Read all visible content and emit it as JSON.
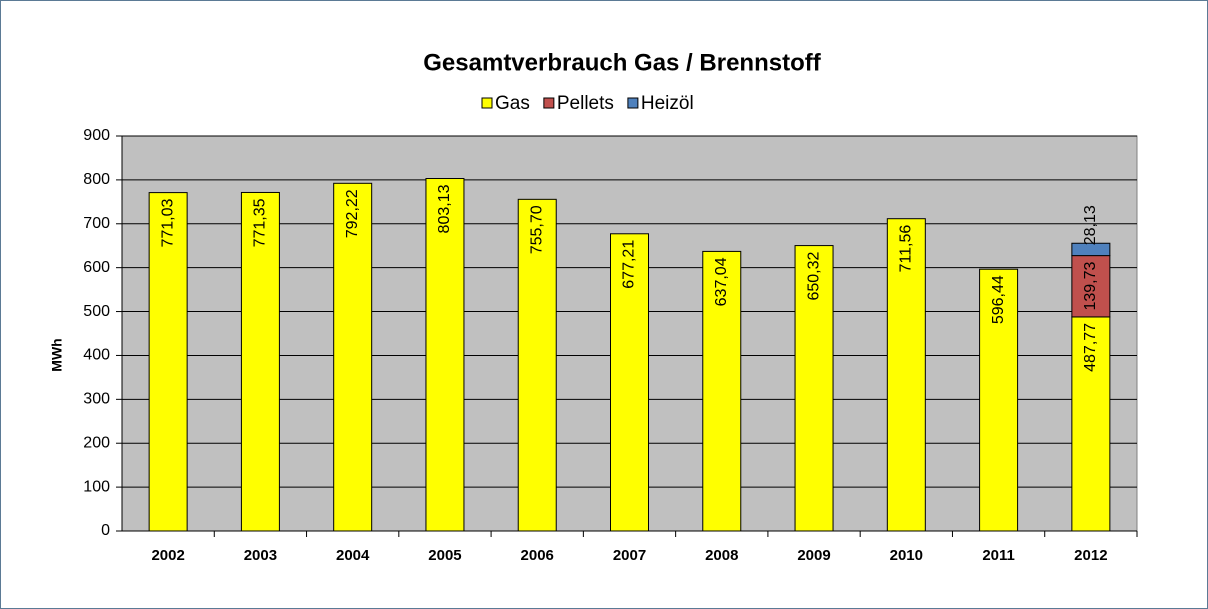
{
  "chart_data": {
    "type": "stacked_bar",
    "title": "Gesamtverbrauch Gas / Brennstoff",
    "y_label": "MWh",
    "categories": [
      "2002",
      "2003",
      "2004",
      "2005",
      "2006",
      "2007",
      "2008",
      "2009",
      "2010",
      "2011",
      "2012"
    ],
    "series": [
      {
        "name": "Gas",
        "color": "#ffff00",
        "values": [
          771.03,
          771.35,
          792.22,
          803.13,
          755.7,
          677.21,
          637.04,
          650.32,
          711.56,
          596.44,
          487.77
        ],
        "value_labels": [
          "771,03",
          "771,35",
          "792,22",
          "803,13",
          "755,70",
          "677,21",
          "637,04",
          "650,32",
          "711,56",
          "596,44",
          "487,77"
        ]
      },
      {
        "name": "Pellets",
        "color": "#c0504d",
        "values": [
          null,
          null,
          null,
          null,
          null,
          null,
          null,
          null,
          null,
          null,
          139.73
        ],
        "value_labels": [
          null,
          null,
          null,
          null,
          null,
          null,
          null,
          null,
          null,
          null,
          "139,73"
        ]
      },
      {
        "name": "Heizöl",
        "color": "#4f81bd",
        "values": [
          null,
          null,
          null,
          null,
          null,
          null,
          null,
          null,
          null,
          null,
          28.13
        ],
        "value_labels": [
          null,
          null,
          null,
          null,
          null,
          null,
          null,
          null,
          null,
          null,
          "28,13"
        ]
      }
    ],
    "ylim": [
      0,
      900
    ],
    "yticks": [
      0,
      100,
      200,
      300,
      400,
      500,
      600,
      700,
      800,
      900
    ],
    "grid": true,
    "legend": "top"
  }
}
